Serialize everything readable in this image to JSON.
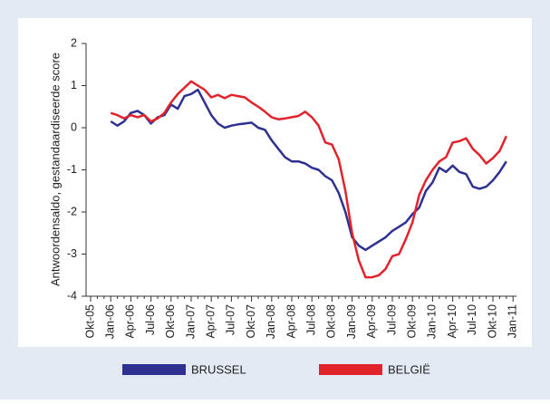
{
  "chart_data": {
    "type": "line",
    "y_label": "Antwoordensaldo, gestandaardiseerde score",
    "categories": [
      "Okt-05",
      null,
      null,
      "Jan-06",
      null,
      null,
      "Apr-06",
      null,
      null,
      "Jul-06",
      null,
      null,
      "Okt-06",
      null,
      null,
      "Jan-07",
      null,
      null,
      "Apr-07",
      null,
      null,
      "Jul-07",
      null,
      null,
      "Okt-07",
      null,
      null,
      "Jan-08",
      null,
      null,
      "Apr-08",
      null,
      null,
      "Jul-08",
      null,
      null,
      "Okt-08",
      null,
      null,
      "Jan-09",
      null,
      null,
      "Apr-09",
      null,
      null,
      "Jul-09",
      null,
      null,
      "Okt-09",
      null,
      null,
      "Jan-10",
      null,
      null,
      "Apr-10",
      null,
      null,
      "Jul-10",
      null,
      null,
      "Okt-10",
      null,
      null,
      "Jan-11"
    ],
    "series": [
      {
        "name": "BRUSSEL",
        "color": "#2e3192",
        "values": [
          null,
          null,
          null,
          0.15,
          0.05,
          0.15,
          0.35,
          0.4,
          0.3,
          0.1,
          0.25,
          0.3,
          0.55,
          0.45,
          0.75,
          0.8,
          0.9,
          0.6,
          0.3,
          0.1,
          0.0,
          0.05,
          0.08,
          0.1,
          0.12,
          0.0,
          -0.05,
          -0.3,
          -0.5,
          -0.7,
          -0.8,
          -0.8,
          -0.85,
          -0.95,
          -1.0,
          -1.15,
          -1.25,
          -1.55,
          -2.0,
          -2.6,
          -2.8,
          -2.9,
          -2.8,
          -2.7,
          -2.6,
          -2.45,
          -2.35,
          -2.25,
          -2.05,
          -1.9,
          -1.5,
          -1.3,
          -0.95,
          -1.05,
          -0.9,
          -1.05,
          -1.1,
          -1.4,
          -1.45,
          -1.4,
          -1.25,
          -1.05,
          -0.8,
          null
        ]
      },
      {
        "name": "BELGIË",
        "color": "#e3232b",
        "values": [
          null,
          null,
          null,
          0.35,
          0.3,
          0.22,
          0.3,
          0.25,
          0.3,
          0.15,
          0.22,
          0.35,
          0.6,
          0.8,
          0.95,
          1.1,
          1.0,
          0.9,
          0.72,
          0.78,
          0.7,
          0.78,
          0.75,
          0.72,
          0.6,
          0.5,
          0.38,
          0.25,
          0.2,
          0.22,
          0.25,
          0.28,
          0.38,
          0.25,
          0.05,
          -0.35,
          -0.4,
          -0.75,
          -1.5,
          -2.5,
          -3.15,
          -3.55,
          -3.55,
          -3.5,
          -3.35,
          -3.05,
          -3.0,
          -2.65,
          -2.25,
          -1.6,
          -1.25,
          -1.0,
          -0.8,
          -0.7,
          -0.35,
          -0.32,
          -0.25,
          -0.5,
          -0.65,
          -0.85,
          -0.72,
          -0.55,
          -0.2,
          null
        ]
      }
    ],
    "ylim": [
      -4,
      2
    ],
    "yticks": [
      -4,
      -3,
      -2,
      -1,
      0,
      1,
      2
    ]
  }
}
